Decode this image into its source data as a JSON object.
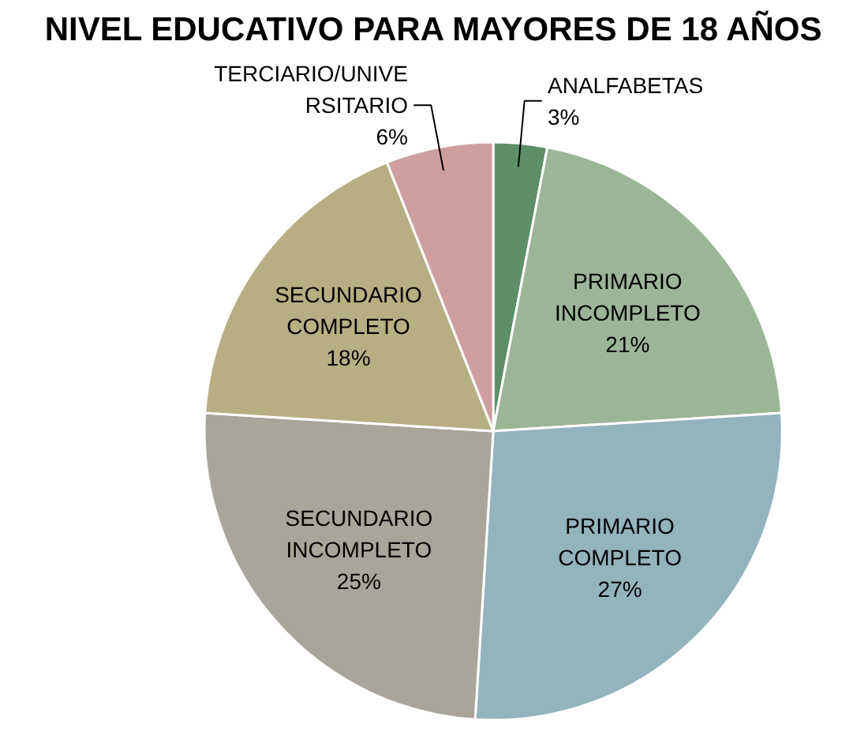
{
  "chart_data": {
    "type": "pie",
    "title": "NIVEL EDUCATIVO PARA MAYORES DE 18 AÑOS",
    "categories": [
      "ANALFABETAS",
      "PRIMARIO INCOMPLETO",
      "PRIMARIO COMPLETO",
      "SECUNDARIO INCOMPLETO",
      "SECUNDARIO COMPLETO",
      "TERCIARIO/UNIVERSITARIO"
    ],
    "values": [
      3,
      21,
      27,
      25,
      18,
      6
    ],
    "colors": [
      "#5e9068",
      "#9bb597",
      "#93b3bd",
      "#a9a59a",
      "#b7ae84",
      "#cf9f9f"
    ],
    "value_labels": [
      "3%",
      "21%",
      "27%",
      "25%",
      "18%",
      "6%"
    ]
  }
}
